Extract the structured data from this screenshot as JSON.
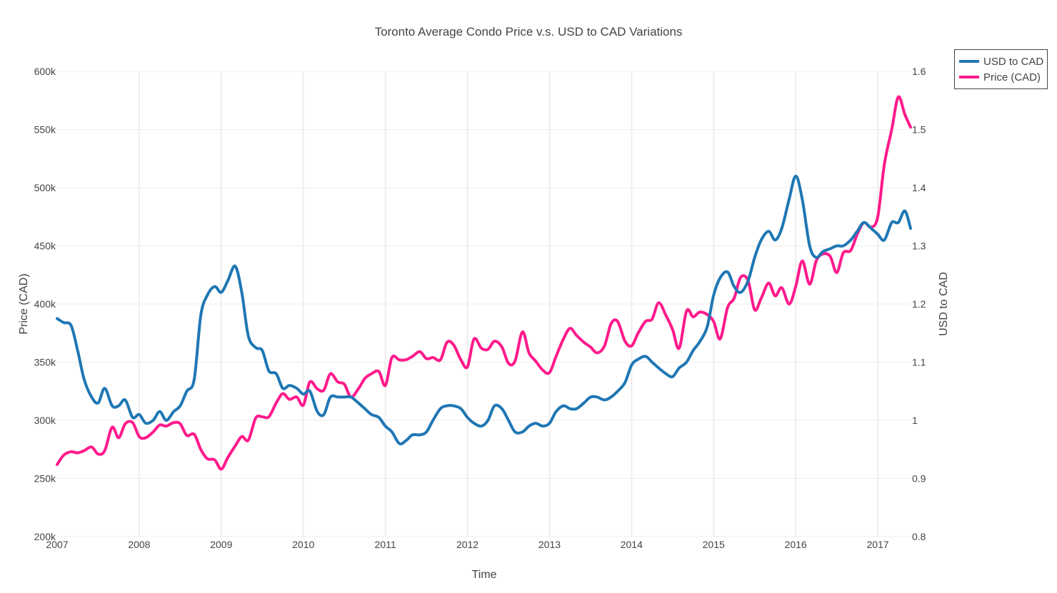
{
  "chart_data": {
    "type": "line",
    "title": "Toronto Average Condo Price v.s. USD to CAD Variations",
    "xlabel": "Time",
    "ylabel_left": "Price (CAD)",
    "ylabel_right": "USD to CAD",
    "xlim": [
      2007.0,
      2017.4
    ],
    "ylim_left": [
      200000,
      600000
    ],
    "ylim_right": [
      0.8,
      1.6
    ],
    "x_ticks": [
      {
        "value": 2007,
        "label": "2007"
      },
      {
        "value": 2008,
        "label": "2008"
      },
      {
        "value": 2009,
        "label": "2009"
      },
      {
        "value": 2010,
        "label": "2010"
      },
      {
        "value": 2011,
        "label": "2011"
      },
      {
        "value": 2012,
        "label": "2012"
      },
      {
        "value": 2013,
        "label": "2013"
      },
      {
        "value": 2014,
        "label": "2014"
      },
      {
        "value": 2015,
        "label": "2015"
      },
      {
        "value": 2016,
        "label": "2016"
      },
      {
        "value": 2017,
        "label": "2017"
      }
    ],
    "y_ticks_left": [
      {
        "value": 200000,
        "label": "200k"
      },
      {
        "value": 250000,
        "label": "250k"
      },
      {
        "value": 300000,
        "label": "300k"
      },
      {
        "value": 350000,
        "label": "350k"
      },
      {
        "value": 400000,
        "label": "400k"
      },
      {
        "value": 450000,
        "label": "450k"
      },
      {
        "value": 500000,
        "label": "500k"
      },
      {
        "value": 550000,
        "label": "550k"
      },
      {
        "value": 600000,
        "label": "600k"
      }
    ],
    "y_ticks_right": [
      {
        "value": 0.8,
        "label": "0.8"
      },
      {
        "value": 0.9,
        "label": "0.9"
      },
      {
        "value": 1.0,
        "label": "1"
      },
      {
        "value": 1.1,
        "label": "1.1"
      },
      {
        "value": 1.2,
        "label": "1.2"
      },
      {
        "value": 1.3,
        "label": "1.3"
      },
      {
        "value": 1.4,
        "label": "1.4"
      },
      {
        "value": 1.5,
        "label": "1.5"
      },
      {
        "value": 1.6,
        "label": "1.6"
      }
    ],
    "grid": true,
    "legend_position": "top-right",
    "series": [
      {
        "name": "USD to CAD",
        "axis": "right",
        "color": "#1f77b4",
        "points": [
          [
            2007.0,
            1.175
          ],
          [
            2007.08,
            1.168
          ],
          [
            2007.17,
            1.163
          ],
          [
            2007.25,
            1.12
          ],
          [
            2007.33,
            1.07
          ],
          [
            2007.42,
            1.04
          ],
          [
            2007.5,
            1.03
          ],
          [
            2007.58,
            1.055
          ],
          [
            2007.67,
            1.025
          ],
          [
            2007.75,
            1.025
          ],
          [
            2007.83,
            1.035
          ],
          [
            2007.92,
            1.005
          ],
          [
            2008.0,
            1.01
          ],
          [
            2008.08,
            0.995
          ],
          [
            2008.17,
            1.0
          ],
          [
            2008.25,
            1.015
          ],
          [
            2008.33,
            1.0
          ],
          [
            2008.42,
            1.015
          ],
          [
            2008.5,
            1.025
          ],
          [
            2008.58,
            1.05
          ],
          [
            2008.67,
            1.07
          ],
          [
            2008.75,
            1.18
          ],
          [
            2008.83,
            1.215
          ],
          [
            2008.92,
            1.23
          ],
          [
            2009.0,
            1.22
          ],
          [
            2009.08,
            1.24
          ],
          [
            2009.17,
            1.265
          ],
          [
            2009.25,
            1.22
          ],
          [
            2009.33,
            1.145
          ],
          [
            2009.42,
            1.125
          ],
          [
            2009.5,
            1.12
          ],
          [
            2009.58,
            1.085
          ],
          [
            2009.67,
            1.08
          ],
          [
            2009.75,
            1.055
          ],
          [
            2009.83,
            1.06
          ],
          [
            2009.92,
            1.055
          ],
          [
            2010.0,
            1.045
          ],
          [
            2010.08,
            1.05
          ],
          [
            2010.17,
            1.015
          ],
          [
            2010.25,
            1.01
          ],
          [
            2010.33,
            1.04
          ],
          [
            2010.42,
            1.04
          ],
          [
            2010.5,
            1.04
          ],
          [
            2010.58,
            1.04
          ],
          [
            2010.67,
            1.03
          ],
          [
            2010.75,
            1.02
          ],
          [
            2010.83,
            1.01
          ],
          [
            2010.92,
            1.005
          ],
          [
            2011.0,
            0.99
          ],
          [
            2011.08,
            0.98
          ],
          [
            2011.17,
            0.96
          ],
          [
            2011.25,
            0.965
          ],
          [
            2011.33,
            0.975
          ],
          [
            2011.42,
            0.975
          ],
          [
            2011.5,
            0.98
          ],
          [
            2011.58,
            1.0
          ],
          [
            2011.67,
            1.02
          ],
          [
            2011.75,
            1.025
          ],
          [
            2011.83,
            1.025
          ],
          [
            2011.92,
            1.02
          ],
          [
            2012.0,
            1.005
          ],
          [
            2012.08,
            0.995
          ],
          [
            2012.17,
            0.99
          ],
          [
            2012.25,
            1.0
          ],
          [
            2012.33,
            1.025
          ],
          [
            2012.42,
            1.02
          ],
          [
            2012.5,
            1.0
          ],
          [
            2012.58,
            0.98
          ],
          [
            2012.67,
            0.98
          ],
          [
            2012.75,
            0.99
          ],
          [
            2012.83,
            0.995
          ],
          [
            2012.92,
            0.99
          ],
          [
            2013.0,
            0.995
          ],
          [
            2013.08,
            1.015
          ],
          [
            2013.17,
            1.025
          ],
          [
            2013.25,
            1.02
          ],
          [
            2013.33,
            1.02
          ],
          [
            2013.42,
            1.03
          ],
          [
            2013.5,
            1.04
          ],
          [
            2013.58,
            1.04
          ],
          [
            2013.67,
            1.035
          ],
          [
            2013.75,
            1.04
          ],
          [
            2013.83,
            1.05
          ],
          [
            2013.92,
            1.065
          ],
          [
            2014.0,
            1.095
          ],
          [
            2014.08,
            1.105
          ],
          [
            2014.17,
            1.11
          ],
          [
            2014.25,
            1.1
          ],
          [
            2014.33,
            1.09
          ],
          [
            2014.42,
            1.08
          ],
          [
            2014.5,
            1.075
          ],
          [
            2014.58,
            1.09
          ],
          [
            2014.67,
            1.1
          ],
          [
            2014.75,
            1.12
          ],
          [
            2014.83,
            1.135
          ],
          [
            2014.92,
            1.16
          ],
          [
            2015.0,
            1.215
          ],
          [
            2015.08,
            1.245
          ],
          [
            2015.17,
            1.255
          ],
          [
            2015.25,
            1.23
          ],
          [
            2015.33,
            1.22
          ],
          [
            2015.42,
            1.24
          ],
          [
            2015.5,
            1.28
          ],
          [
            2015.58,
            1.31
          ],
          [
            2015.67,
            1.325
          ],
          [
            2015.75,
            1.31
          ],
          [
            2015.83,
            1.33
          ],
          [
            2015.92,
            1.38
          ],
          [
            2016.0,
            1.42
          ],
          [
            2016.08,
            1.38
          ],
          [
            2016.17,
            1.3
          ],
          [
            2016.25,
            1.28
          ],
          [
            2016.33,
            1.29
          ],
          [
            2016.42,
            1.295
          ],
          [
            2016.5,
            1.3
          ],
          [
            2016.58,
            1.3
          ],
          [
            2016.67,
            1.31
          ],
          [
            2016.75,
            1.325
          ],
          [
            2016.83,
            1.34
          ],
          [
            2016.92,
            1.33
          ],
          [
            2017.0,
            1.32
          ],
          [
            2017.08,
            1.31
          ],
          [
            2017.17,
            1.34
          ],
          [
            2017.25,
            1.34
          ],
          [
            2017.33,
            1.36
          ],
          [
            2017.4,
            1.33
          ]
        ]
      },
      {
        "name": "Price (CAD)",
        "axis": "left",
        "color": "#ff1a8c",
        "points": [
          [
            2007.0,
            262000
          ],
          [
            2007.08,
            270000
          ],
          [
            2007.17,
            273000
          ],
          [
            2007.25,
            272000
          ],
          [
            2007.33,
            274000
          ],
          [
            2007.42,
            277000
          ],
          [
            2007.5,
            271000
          ],
          [
            2007.58,
            274000
          ],
          [
            2007.67,
            294000
          ],
          [
            2007.75,
            285000
          ],
          [
            2007.83,
            297000
          ],
          [
            2007.92,
            298000
          ],
          [
            2008.0,
            286000
          ],
          [
            2008.08,
            285000
          ],
          [
            2008.17,
            290000
          ],
          [
            2008.25,
            296000
          ],
          [
            2008.33,
            295000
          ],
          [
            2008.42,
            298000
          ],
          [
            2008.5,
            297000
          ],
          [
            2008.58,
            287000
          ],
          [
            2008.67,
            288000
          ],
          [
            2008.75,
            275000
          ],
          [
            2008.83,
            267000
          ],
          [
            2008.92,
            266000
          ],
          [
            2009.0,
            258000
          ],
          [
            2009.08,
            268000
          ],
          [
            2009.17,
            278000
          ],
          [
            2009.25,
            286000
          ],
          [
            2009.33,
            283000
          ],
          [
            2009.42,
            302000
          ],
          [
            2009.5,
            303000
          ],
          [
            2009.58,
            303000
          ],
          [
            2009.67,
            315000
          ],
          [
            2009.75,
            323000
          ],
          [
            2009.83,
            318000
          ],
          [
            2009.92,
            320000
          ],
          [
            2010.0,
            313000
          ],
          [
            2010.08,
            333000
          ],
          [
            2010.17,
            327000
          ],
          [
            2010.25,
            326000
          ],
          [
            2010.33,
            340000
          ],
          [
            2010.42,
            333000
          ],
          [
            2010.5,
            331000
          ],
          [
            2010.58,
            320000
          ],
          [
            2010.67,
            327000
          ],
          [
            2010.75,
            336000
          ],
          [
            2010.83,
            340000
          ],
          [
            2010.92,
            342000
          ],
          [
            2011.0,
            330000
          ],
          [
            2011.08,
            354000
          ],
          [
            2011.17,
            352000
          ],
          [
            2011.25,
            352000
          ],
          [
            2011.33,
            355000
          ],
          [
            2011.42,
            359000
          ],
          [
            2011.5,
            353000
          ],
          [
            2011.58,
            354000
          ],
          [
            2011.67,
            352000
          ],
          [
            2011.75,
            367000
          ],
          [
            2011.83,
            365000
          ],
          [
            2011.92,
            352000
          ],
          [
            2012.0,
            346000
          ],
          [
            2012.08,
            370000
          ],
          [
            2012.17,
            362000
          ],
          [
            2012.25,
            361000
          ],
          [
            2012.33,
            368000
          ],
          [
            2012.42,
            363000
          ],
          [
            2012.5,
            349000
          ],
          [
            2012.58,
            351000
          ],
          [
            2012.67,
            376000
          ],
          [
            2012.75,
            358000
          ],
          [
            2012.83,
            351000
          ],
          [
            2012.92,
            343000
          ],
          [
            2013.0,
            341000
          ],
          [
            2013.08,
            355000
          ],
          [
            2013.17,
            370000
          ],
          [
            2013.25,
            379000
          ],
          [
            2013.33,
            373000
          ],
          [
            2013.42,
            367000
          ],
          [
            2013.5,
            363000
          ],
          [
            2013.58,
            358000
          ],
          [
            2013.67,
            364000
          ],
          [
            2013.75,
            383000
          ],
          [
            2013.83,
            385000
          ],
          [
            2013.92,
            368000
          ],
          [
            2014.0,
            364000
          ],
          [
            2014.08,
            375000
          ],
          [
            2014.17,
            385000
          ],
          [
            2014.25,
            387000
          ],
          [
            2014.33,
            401000
          ],
          [
            2014.42,
            390000
          ],
          [
            2014.5,
            378000
          ],
          [
            2014.58,
            362000
          ],
          [
            2014.67,
            394000
          ],
          [
            2014.75,
            389000
          ],
          [
            2014.83,
            393000
          ],
          [
            2014.92,
            391000
          ],
          [
            2015.0,
            385000
          ],
          [
            2015.08,
            370000
          ],
          [
            2015.17,
            397000
          ],
          [
            2015.25,
            405000
          ],
          [
            2015.33,
            423000
          ],
          [
            2015.42,
            420000
          ],
          [
            2015.5,
            395000
          ],
          [
            2015.58,
            405000
          ],
          [
            2015.67,
            418000
          ],
          [
            2015.75,
            407000
          ],
          [
            2015.83,
            414000
          ],
          [
            2015.92,
            400000
          ],
          [
            2016.0,
            415000
          ],
          [
            2016.08,
            437000
          ],
          [
            2016.17,
            417000
          ],
          [
            2016.25,
            437000
          ],
          [
            2016.33,
            443000
          ],
          [
            2016.42,
            441000
          ],
          [
            2016.5,
            427000
          ],
          [
            2016.58,
            444000
          ],
          [
            2016.67,
            446000
          ],
          [
            2016.75,
            460000
          ],
          [
            2016.83,
            470000
          ],
          [
            2016.92,
            466000
          ],
          [
            2017.0,
            475000
          ],
          [
            2017.08,
            520000
          ],
          [
            2017.17,
            550000
          ],
          [
            2017.25,
            578000
          ],
          [
            2017.33,
            563000
          ],
          [
            2017.4,
            552000
          ]
        ]
      }
    ]
  }
}
